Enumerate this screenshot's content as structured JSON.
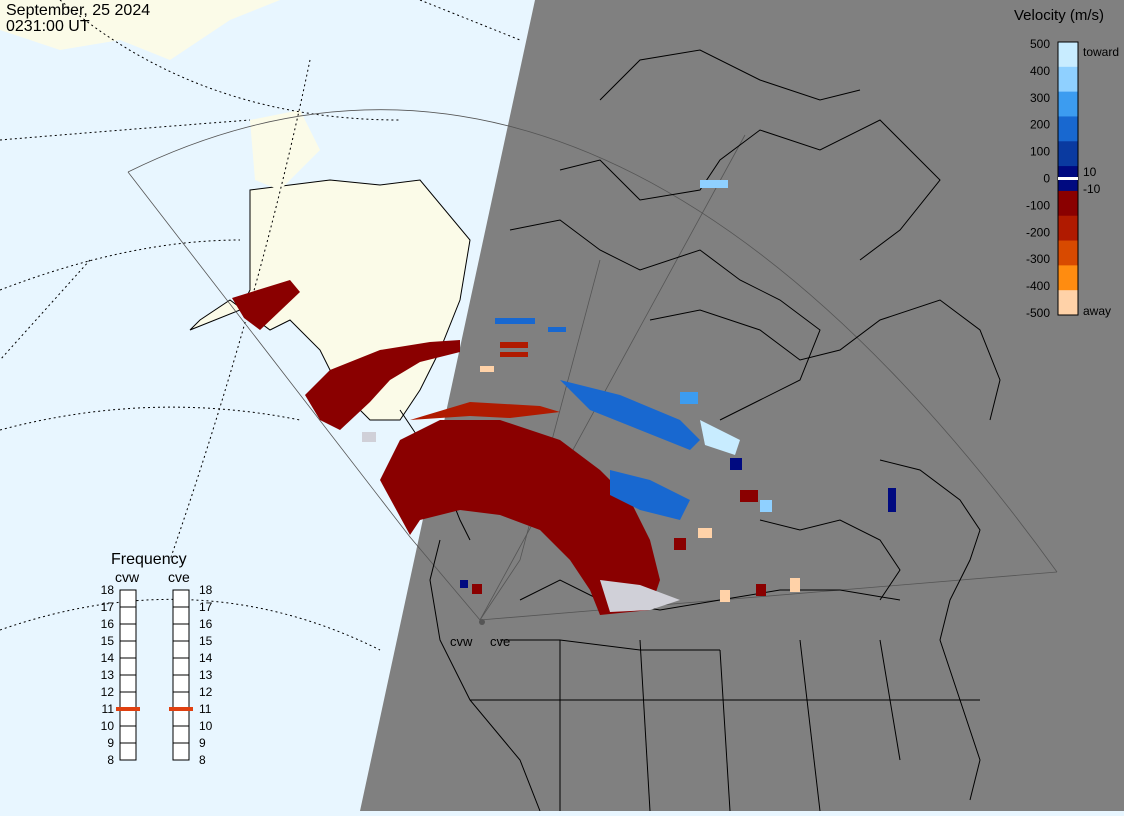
{
  "header": {
    "date": "September, 25 2024",
    "time": "0231:00 UT"
  },
  "legend": {
    "title": "Velocity (m/s)",
    "ticks": [
      "500",
      "400",
      "300",
      "200",
      "100",
      "0",
      "-100",
      "-200",
      "-300",
      "-400",
      "-500"
    ],
    "extra_ticks": [
      "10",
      "-10"
    ],
    "toward_label": "toward",
    "away_label": "away",
    "colors": [
      "#c8ecff",
      "#8fd0ff",
      "#3c9cf0",
      "#1868d0",
      "#0a3aa0",
      "#000a80",
      "#8a0000",
      "#b01a00",
      "#d84a00",
      "#ff8c10",
      "#ffd2a8"
    ]
  },
  "frequency": {
    "title": "Frequency",
    "radars": [
      {
        "name": "cvw",
        "value_mhz": 11
      },
      {
        "name": "cve",
        "value_mhz": 11
      }
    ],
    "scale": [
      "18",
      "17",
      "16",
      "15",
      "14",
      "13",
      "12",
      "11",
      "10",
      "9",
      "8"
    ],
    "marker_color": "#e04010"
  },
  "map": {
    "radar_labels": [
      "cvw",
      "cve"
    ],
    "colors": {
      "ocean": "#e8f6ff",
      "land_day": "#fbfbe8",
      "night": "#808080"
    }
  }
}
